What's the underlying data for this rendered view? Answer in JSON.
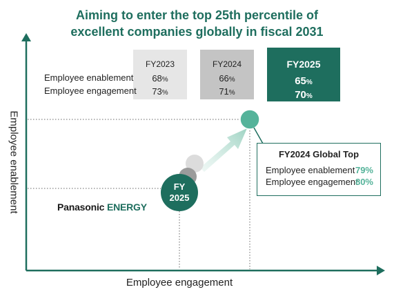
{
  "title": {
    "line1": "Aiming to enter the top 25th percentile of",
    "line2": "excellent companies globally in fiscal 2031"
  },
  "axes": {
    "y_label": "Employee enablement",
    "x_label": "Employee engagement"
  },
  "table": {
    "row_labels": [
      "Employee enablement",
      "Employee engagement"
    ],
    "columns": [
      {
        "year": "FY2023",
        "enablement": "68",
        "engagement": "73",
        "unit": "%"
      },
      {
        "year": "FY2024",
        "enablement": "66",
        "engagement": "71",
        "unit": "%"
      },
      {
        "year": "FY2025",
        "enablement": "65",
        "engagement": "70",
        "unit": "%"
      }
    ]
  },
  "callout": {
    "title": "FY2024 Global Top",
    "rows": [
      {
        "label": "Employee enablement",
        "value": "79%"
      },
      {
        "label": "Employee engagement",
        "value": "80%"
      }
    ]
  },
  "current_marker": {
    "line1": "FY",
    "line2": "2025"
  },
  "logo": {
    "part1": "Panasonic",
    "part2": "ENERGY"
  },
  "colors": {
    "brand_green": "#1e6e5e",
    "light_green": "#55b39a",
    "fy2023_box": "#e6e6e6",
    "fy2024_box": "#c4c4c4"
  }
}
